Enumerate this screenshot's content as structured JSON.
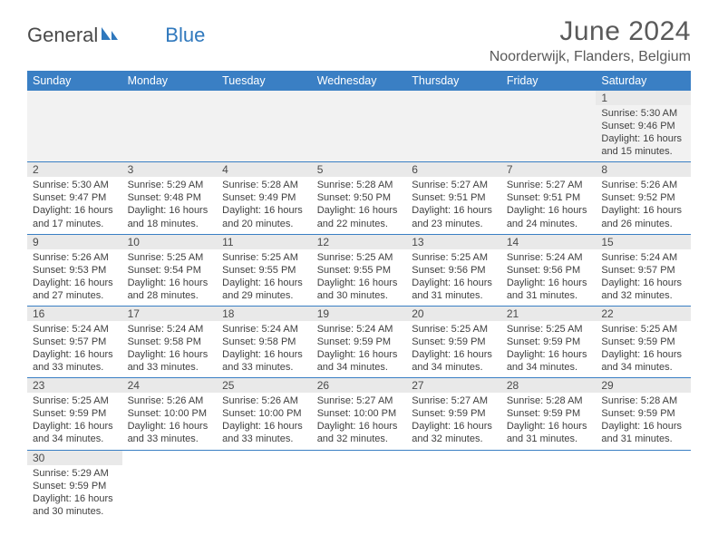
{
  "brand": {
    "part1": "General",
    "part2": "Blue"
  },
  "title": "June 2024",
  "location": "Noorderwijk, Flanders, Belgium",
  "colors": {
    "header_bg": "#3a7fc4",
    "header_text": "#ffffff",
    "daynum_bg": "#e9e9e9",
    "border": "#3a7fc4",
    "body_text": "#3f3f3f",
    "title_text": "#5a5a5a"
  },
  "weekdays": [
    "Sunday",
    "Monday",
    "Tuesday",
    "Wednesday",
    "Thursday",
    "Friday",
    "Saturday"
  ],
  "weeks": [
    [
      null,
      null,
      null,
      null,
      null,
      null,
      {
        "n": "1",
        "sr": "Sunrise: 5:30 AM",
        "ss": "Sunset: 9:46 PM",
        "d1": "Daylight: 16 hours",
        "d2": "and 15 minutes."
      }
    ],
    [
      {
        "n": "2",
        "sr": "Sunrise: 5:30 AM",
        "ss": "Sunset: 9:47 PM",
        "d1": "Daylight: 16 hours",
        "d2": "and 17 minutes."
      },
      {
        "n": "3",
        "sr": "Sunrise: 5:29 AM",
        "ss": "Sunset: 9:48 PM",
        "d1": "Daylight: 16 hours",
        "d2": "and 18 minutes."
      },
      {
        "n": "4",
        "sr": "Sunrise: 5:28 AM",
        "ss": "Sunset: 9:49 PM",
        "d1": "Daylight: 16 hours",
        "d2": "and 20 minutes."
      },
      {
        "n": "5",
        "sr": "Sunrise: 5:28 AM",
        "ss": "Sunset: 9:50 PM",
        "d1": "Daylight: 16 hours",
        "d2": "and 22 minutes."
      },
      {
        "n": "6",
        "sr": "Sunrise: 5:27 AM",
        "ss": "Sunset: 9:51 PM",
        "d1": "Daylight: 16 hours",
        "d2": "and 23 minutes."
      },
      {
        "n": "7",
        "sr": "Sunrise: 5:27 AM",
        "ss": "Sunset: 9:51 PM",
        "d1": "Daylight: 16 hours",
        "d2": "and 24 minutes."
      },
      {
        "n": "8",
        "sr": "Sunrise: 5:26 AM",
        "ss": "Sunset: 9:52 PM",
        "d1": "Daylight: 16 hours",
        "d2": "and 26 minutes."
      }
    ],
    [
      {
        "n": "9",
        "sr": "Sunrise: 5:26 AM",
        "ss": "Sunset: 9:53 PM",
        "d1": "Daylight: 16 hours",
        "d2": "and 27 minutes."
      },
      {
        "n": "10",
        "sr": "Sunrise: 5:25 AM",
        "ss": "Sunset: 9:54 PM",
        "d1": "Daylight: 16 hours",
        "d2": "and 28 minutes."
      },
      {
        "n": "11",
        "sr": "Sunrise: 5:25 AM",
        "ss": "Sunset: 9:55 PM",
        "d1": "Daylight: 16 hours",
        "d2": "and 29 minutes."
      },
      {
        "n": "12",
        "sr": "Sunrise: 5:25 AM",
        "ss": "Sunset: 9:55 PM",
        "d1": "Daylight: 16 hours",
        "d2": "and 30 minutes."
      },
      {
        "n": "13",
        "sr": "Sunrise: 5:25 AM",
        "ss": "Sunset: 9:56 PM",
        "d1": "Daylight: 16 hours",
        "d2": "and 31 minutes."
      },
      {
        "n": "14",
        "sr": "Sunrise: 5:24 AM",
        "ss": "Sunset: 9:56 PM",
        "d1": "Daylight: 16 hours",
        "d2": "and 31 minutes."
      },
      {
        "n": "15",
        "sr": "Sunrise: 5:24 AM",
        "ss": "Sunset: 9:57 PM",
        "d1": "Daylight: 16 hours",
        "d2": "and 32 minutes."
      }
    ],
    [
      {
        "n": "16",
        "sr": "Sunrise: 5:24 AM",
        "ss": "Sunset: 9:57 PM",
        "d1": "Daylight: 16 hours",
        "d2": "and 33 minutes."
      },
      {
        "n": "17",
        "sr": "Sunrise: 5:24 AM",
        "ss": "Sunset: 9:58 PM",
        "d1": "Daylight: 16 hours",
        "d2": "and 33 minutes."
      },
      {
        "n": "18",
        "sr": "Sunrise: 5:24 AM",
        "ss": "Sunset: 9:58 PM",
        "d1": "Daylight: 16 hours",
        "d2": "and 33 minutes."
      },
      {
        "n": "19",
        "sr": "Sunrise: 5:24 AM",
        "ss": "Sunset: 9:59 PM",
        "d1": "Daylight: 16 hours",
        "d2": "and 34 minutes."
      },
      {
        "n": "20",
        "sr": "Sunrise: 5:25 AM",
        "ss": "Sunset: 9:59 PM",
        "d1": "Daylight: 16 hours",
        "d2": "and 34 minutes."
      },
      {
        "n": "21",
        "sr": "Sunrise: 5:25 AM",
        "ss": "Sunset: 9:59 PM",
        "d1": "Daylight: 16 hours",
        "d2": "and 34 minutes."
      },
      {
        "n": "22",
        "sr": "Sunrise: 5:25 AM",
        "ss": "Sunset: 9:59 PM",
        "d1": "Daylight: 16 hours",
        "d2": "and 34 minutes."
      }
    ],
    [
      {
        "n": "23",
        "sr": "Sunrise: 5:25 AM",
        "ss": "Sunset: 9:59 PM",
        "d1": "Daylight: 16 hours",
        "d2": "and 34 minutes."
      },
      {
        "n": "24",
        "sr": "Sunrise: 5:26 AM",
        "ss": "Sunset: 10:00 PM",
        "d1": "Daylight: 16 hours",
        "d2": "and 33 minutes."
      },
      {
        "n": "25",
        "sr": "Sunrise: 5:26 AM",
        "ss": "Sunset: 10:00 PM",
        "d1": "Daylight: 16 hours",
        "d2": "and 33 minutes."
      },
      {
        "n": "26",
        "sr": "Sunrise: 5:27 AM",
        "ss": "Sunset: 10:00 PM",
        "d1": "Daylight: 16 hours",
        "d2": "and 32 minutes."
      },
      {
        "n": "27",
        "sr": "Sunrise: 5:27 AM",
        "ss": "Sunset: 9:59 PM",
        "d1": "Daylight: 16 hours",
        "d2": "and 32 minutes."
      },
      {
        "n": "28",
        "sr": "Sunrise: 5:28 AM",
        "ss": "Sunset: 9:59 PM",
        "d1": "Daylight: 16 hours",
        "d2": "and 31 minutes."
      },
      {
        "n": "29",
        "sr": "Sunrise: 5:28 AM",
        "ss": "Sunset: 9:59 PM",
        "d1": "Daylight: 16 hours",
        "d2": "and 31 minutes."
      }
    ],
    [
      {
        "n": "30",
        "sr": "Sunrise: 5:29 AM",
        "ss": "Sunset: 9:59 PM",
        "d1": "Daylight: 16 hours",
        "d2": "and 30 minutes."
      },
      null,
      null,
      null,
      null,
      null,
      null
    ]
  ]
}
